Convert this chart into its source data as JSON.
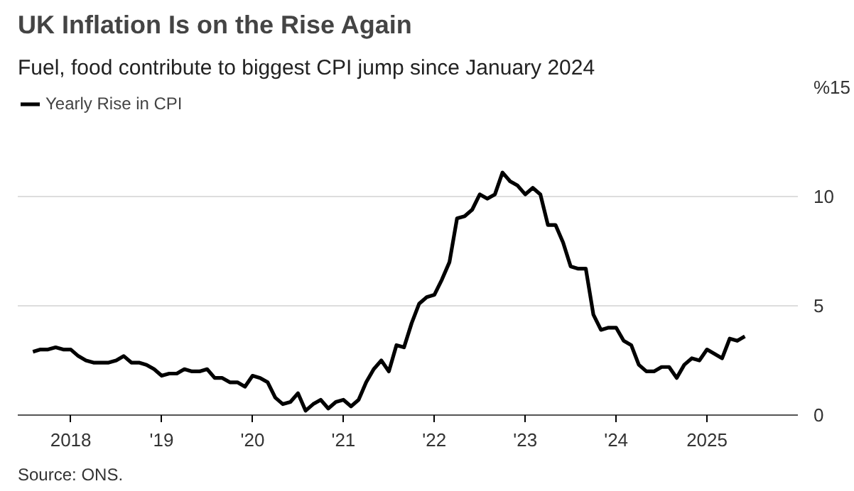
{
  "chart_data": {
    "type": "line",
    "title": "UK Inflation Is on the Rise Again",
    "subtitle": "Fuel, food contribute to biggest CPI jump since January 2024",
    "x": [
      "2017-08",
      "2017-09",
      "2017-10",
      "2017-11",
      "2017-12",
      "2018-01",
      "2018-02",
      "2018-03",
      "2018-04",
      "2018-05",
      "2018-06",
      "2018-07",
      "2018-08",
      "2018-09",
      "2018-10",
      "2018-11",
      "2018-12",
      "2019-01",
      "2019-02",
      "2019-03",
      "2019-04",
      "2019-05",
      "2019-06",
      "2019-07",
      "2019-08",
      "2019-09",
      "2019-10",
      "2019-11",
      "2019-12",
      "2020-01",
      "2020-02",
      "2020-03",
      "2020-04",
      "2020-05",
      "2020-06",
      "2020-07",
      "2020-08",
      "2020-09",
      "2020-10",
      "2020-11",
      "2020-12",
      "2021-01",
      "2021-02",
      "2021-03",
      "2021-04",
      "2021-05",
      "2021-06",
      "2021-07",
      "2021-08",
      "2021-09",
      "2021-10",
      "2021-11",
      "2021-12",
      "2022-01",
      "2022-02",
      "2022-03",
      "2022-04",
      "2022-05",
      "2022-06",
      "2022-07",
      "2022-08",
      "2022-09",
      "2022-10",
      "2022-11",
      "2022-12",
      "2023-01",
      "2023-02",
      "2023-03",
      "2023-04",
      "2023-05",
      "2023-06",
      "2023-07",
      "2023-08",
      "2023-09",
      "2023-10",
      "2023-11",
      "2023-12",
      "2024-01",
      "2024-02",
      "2024-03",
      "2024-04",
      "2024-05",
      "2024-06",
      "2024-07",
      "2024-08",
      "2024-09",
      "2024-10",
      "2024-11",
      "2024-12",
      "2025-01",
      "2025-02",
      "2025-03",
      "2025-04",
      "2025-05",
      "2025-06"
    ],
    "series": [
      {
        "name": "Yearly Rise in CPI",
        "color": "#000000",
        "values": [
          2.9,
          3.0,
          3.0,
          3.1,
          3.0,
          3.0,
          2.7,
          2.5,
          2.4,
          2.4,
          2.4,
          2.5,
          2.7,
          2.4,
          2.4,
          2.3,
          2.1,
          1.8,
          1.9,
          1.9,
          2.1,
          2.0,
          2.0,
          2.1,
          1.7,
          1.7,
          1.5,
          1.5,
          1.3,
          1.8,
          1.7,
          1.5,
          0.8,
          0.5,
          0.6,
          1.0,
          0.2,
          0.5,
          0.7,
          0.3,
          0.6,
          0.7,
          0.4,
          0.7,
          1.5,
          2.1,
          2.5,
          2.0,
          3.2,
          3.1,
          4.2,
          5.1,
          5.4,
          5.5,
          6.2,
          7.0,
          9.0,
          9.1,
          9.4,
          10.1,
          9.9,
          10.1,
          11.1,
          10.7,
          10.5,
          10.1,
          10.4,
          10.1,
          8.7,
          8.7,
          7.9,
          6.8,
          6.7,
          6.7,
          4.6,
          3.9,
          4.0,
          4.0,
          3.4,
          3.2,
          2.3,
          2.0,
          2.0,
          2.2,
          2.2,
          1.7,
          2.3,
          2.6,
          2.5,
          3.0,
          2.8,
          2.6,
          3.5,
          3.4,
          3.6
        ]
      }
    ],
    "xlim": [
      "2017-06",
      "2026-01"
    ],
    "xticks": [
      {
        "value": "2018",
        "label": "2018"
      },
      {
        "value": "2019",
        "label": "'19"
      },
      {
        "value": "2020",
        "label": "'20"
      },
      {
        "value": "2021",
        "label": "'21"
      },
      {
        "value": "2022",
        "label": "'22"
      },
      {
        "value": "2023",
        "label": "'23"
      },
      {
        "value": "2024",
        "label": "'24"
      },
      {
        "value": "2025",
        "label": "2025"
      }
    ],
    "ylim": [
      0,
      15
    ],
    "yticks": [
      0,
      5,
      10,
      {
        "value": 15,
        "label": "%15"
      }
    ],
    "grid": "y",
    "legend": "top left",
    "line_style": "solid",
    "marker": "none",
    "annotations": [
      "Source: ONS."
    ]
  }
}
